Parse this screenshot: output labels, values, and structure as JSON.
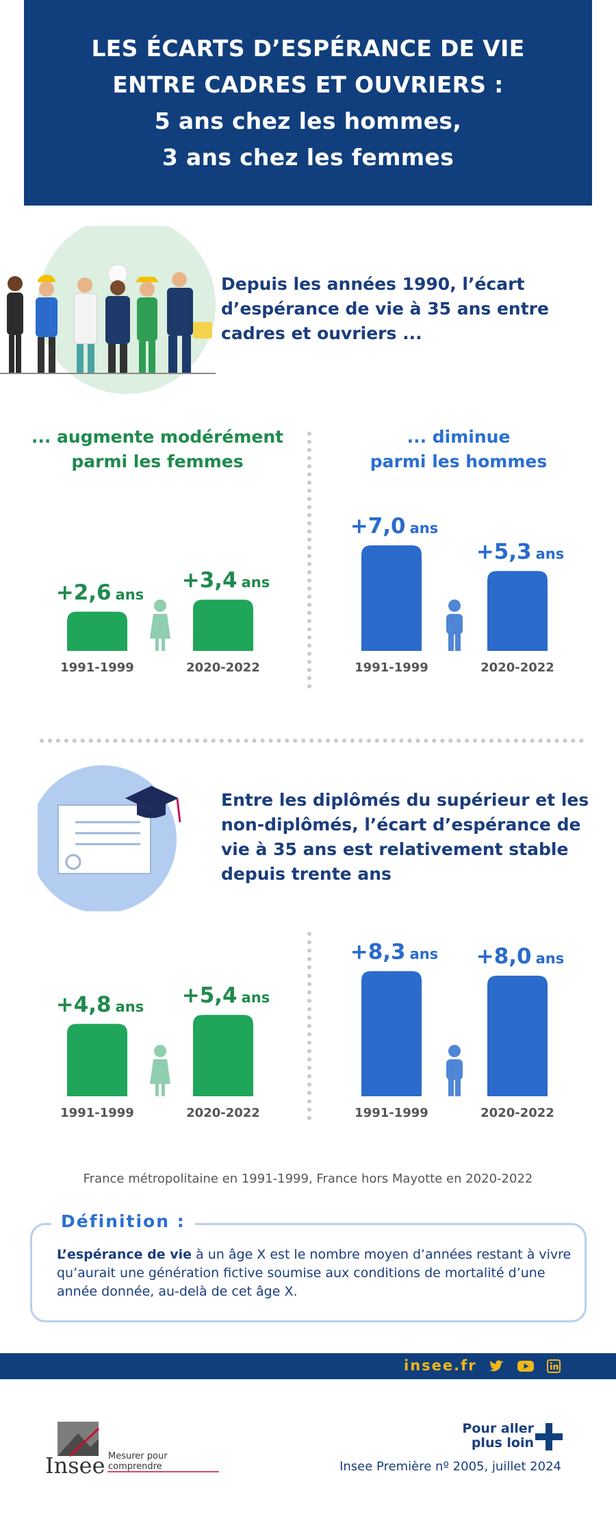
{
  "header": {
    "lines": [
      "LES ÉCARTS D’ESPÉRANCE DE VIE",
      "ENTRE CADRES ET OUVRIERS :",
      "5 ans chez les hommes,",
      "3 ans chez les femmes"
    ]
  },
  "section1": {
    "intro": "Depuis les années 1990, l’écart d’espérance de vie à 35 ans entre cadres et ouvriers ...",
    "women_heading_1": "... augmente modérément",
    "women_heading_2": "parmi les femmes",
    "men_heading_1": "... diminue",
    "men_heading_2": "parmi les hommes"
  },
  "section2": {
    "intro": "Entre les diplômés du supérieur et les non-diplômés, l’écart d’espérance de vie à 35 ans est relativement stable depuis trente ans"
  },
  "colors": {
    "women": "#1fa65a",
    "women_text": "#1f8a4c",
    "men": "#2a6bcc",
    "men_icon": "#4f86d6",
    "women_icon": "#8fceae",
    "navy": "#113f7d",
    "accent": "#f0b719"
  },
  "unit": "ans",
  "chart_data": [
    {
      "type": "bar",
      "title": "",
      "group": "femmes, cadres vs ouvriers",
      "categories": [
        "1991-1999",
        "2020-2022"
      ],
      "values": [
        2.6,
        3.4
      ],
      "labels": [
        "+2,6",
        "+3,4"
      ],
      "ylim": [
        0,
        9
      ]
    },
    {
      "type": "bar",
      "title": "",
      "group": "hommes, cadres vs ouvriers",
      "categories": [
        "1991-1999",
        "2020-2022"
      ],
      "values": [
        7.0,
        5.3
      ],
      "labels": [
        "+7,0",
        "+5,3"
      ],
      "ylim": [
        0,
        9
      ]
    },
    {
      "type": "bar",
      "title": "",
      "group": "femmes, diplômés vs non-diplômés",
      "categories": [
        "1991-1999",
        "2020-2022"
      ],
      "values": [
        4.8,
        5.4
      ],
      "labels": [
        "+4,8",
        "+5,4"
      ],
      "ylim": [
        0,
        9
      ]
    },
    {
      "type": "bar",
      "title": "",
      "group": "hommes, diplômés vs non-diplômés",
      "categories": [
        "1991-1999",
        "2020-2022"
      ],
      "values": [
        8.3,
        8.0
      ],
      "labels": [
        "+8,3",
        "+8,0"
      ],
      "ylim": [
        0,
        9
      ]
    }
  ],
  "scope_note": "France métropolitaine en 1991-1999, France hors Mayotte en 2020-2022",
  "definition": {
    "title": "Définition :",
    "term": "L’espérance de vie",
    "text": " à un âge X est le nombre moyen d’années restant à vivre qu’aurait une génération fictive soumise aux conditions de mortalité d’une année donnée, au-delà de cet âge X."
  },
  "footer": {
    "site": "insee.fr",
    "social_icons": [
      "twitter-icon",
      "youtube-icon",
      "linkedin-icon"
    ],
    "logo_text": "Insee",
    "tagline": "Mesurer pour comprendre",
    "more_1": "Pour aller",
    "more_2": "plus loin",
    "reference": "Insee Première nº 2005, juillet 2024"
  }
}
